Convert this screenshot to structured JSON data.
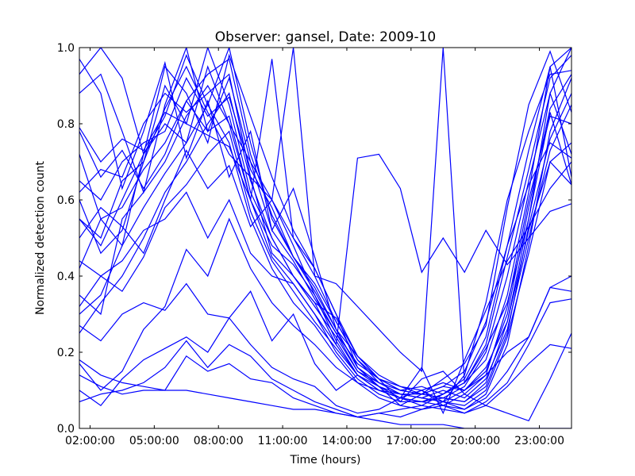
{
  "chart_data": {
    "type": "line",
    "title": "Observer: gansel, Date: 2009-10",
    "xlabel": "Time (hours)",
    "ylabel": "Normalized detection count",
    "xlim": [
      1.5,
      24.5
    ],
    "ylim": [
      0.0,
      1.0
    ],
    "grid": false,
    "line_color": "#0000ff",
    "x_ticks": [
      {
        "value": 2,
        "label": "02:00:00"
      },
      {
        "value": 5,
        "label": "05:00:00"
      },
      {
        "value": 8,
        "label": "08:00:00"
      },
      {
        "value": 11,
        "label": "11:00:00"
      },
      {
        "value": 14,
        "label": "14:00:00"
      },
      {
        "value": 17,
        "label": "17:00:00"
      },
      {
        "value": 20,
        "label": "20:00:00"
      },
      {
        "value": 23,
        "label": "23:00:00"
      }
    ],
    "y_ticks": [
      {
        "value": 0.0,
        "label": "0.0"
      },
      {
        "value": 0.2,
        "label": "0.2"
      },
      {
        "value": 0.4,
        "label": "0.4"
      },
      {
        "value": 0.6,
        "label": "0.6"
      },
      {
        "value": 0.8,
        "label": "0.8"
      },
      {
        "value": 1.0,
        "label": "1.0"
      }
    ],
    "x": [
      1.5,
      2.5,
      3.5,
      4.5,
      5.5,
      6.5,
      7.5,
      8.5,
      9.5,
      10.5,
      11.5,
      12.5,
      13.5,
      14.5,
      15.5,
      16.5,
      17.5,
      18.5,
      19.5,
      20.5,
      21.5,
      22.5,
      23.5,
      24.5
    ],
    "series": [
      {
        "values": [
          0.93,
          1.0,
          0.92,
          0.72,
          0.82,
          0.98,
          0.85,
          1.0,
          0.75,
          0.55,
          0.45,
          0.38,
          0.28,
          0.18,
          0.13,
          0.1,
          0.09,
          0.08,
          0.07,
          0.12,
          0.28,
          0.55,
          0.88,
          1.0
        ]
      },
      {
        "values": [
          0.88,
          0.93,
          0.78,
          0.62,
          0.85,
          1.0,
          0.78,
          0.92,
          0.7,
          0.6,
          0.48,
          0.35,
          0.25,
          0.15,
          0.11,
          0.08,
          0.1,
          0.07,
          0.05,
          0.09,
          0.22,
          0.48,
          0.78,
          0.92
        ]
      },
      {
        "values": [
          0.55,
          0.5,
          0.65,
          0.7,
          0.9,
          0.8,
          1.0,
          0.85,
          0.62,
          0.5,
          0.4,
          0.33,
          0.22,
          0.14,
          0.1,
          0.08,
          0.06,
          0.09,
          0.12,
          0.18,
          0.35,
          0.62,
          0.95,
          1.0
        ]
      },
      {
        "values": [
          0.72,
          0.55,
          0.48,
          0.72,
          0.95,
          0.88,
          0.75,
          0.98,
          0.82,
          0.66,
          0.52,
          0.42,
          0.3,
          0.19,
          0.14,
          0.11,
          0.1,
          0.12,
          0.1,
          0.15,
          0.3,
          0.58,
          0.84,
          0.93
        ]
      },
      {
        "values": [
          0.65,
          0.6,
          0.7,
          0.75,
          0.78,
          0.92,
          0.82,
          0.87,
          0.68,
          0.58,
          0.45,
          0.36,
          0.26,
          0.16,
          0.12,
          0.09,
          0.08,
          0.1,
          0.08,
          0.13,
          0.26,
          0.5,
          0.73,
          0.85
        ]
      },
      {
        "values": [
          0.35,
          0.3,
          0.55,
          0.62,
          0.7,
          0.82,
          0.9,
          0.8,
          0.6,
          0.45,
          0.38,
          0.3,
          0.2,
          0.13,
          0.09,
          0.07,
          0.07,
          0.06,
          0.09,
          0.14,
          0.32,
          0.6,
          0.82,
          0.8
        ]
      },
      {
        "values": [
          0.3,
          0.35,
          0.48,
          0.58,
          0.67,
          0.75,
          0.85,
          0.75,
          0.55,
          0.42,
          0.33,
          0.27,
          0.19,
          0.12,
          0.1,
          0.09,
          0.08,
          0.07,
          0.1,
          0.16,
          0.28,
          0.52,
          0.7,
          0.75
        ]
      },
      {
        "values": [
          0.25,
          0.33,
          0.4,
          0.5,
          0.62,
          0.7,
          0.8,
          0.88,
          0.65,
          0.5,
          0.4,
          0.32,
          0.24,
          0.15,
          0.12,
          0.1,
          0.09,
          0.08,
          0.11,
          0.2,
          0.4,
          0.65,
          0.88,
          0.72
        ]
      },
      {
        "values": [
          0.55,
          0.48,
          0.6,
          0.72,
          0.8,
          0.75,
          0.95,
          0.8,
          0.7,
          0.52,
          0.44,
          0.34,
          0.25,
          0.17,
          0.13,
          0.1,
          0.11,
          0.09,
          0.12,
          0.22,
          0.45,
          0.68,
          0.92,
          0.98
        ]
      },
      {
        "values": [
          0.62,
          0.68,
          0.66,
          0.8,
          0.88,
          0.83,
          0.88,
          0.93,
          0.66,
          0.6,
          0.5,
          0.4,
          0.28,
          0.18,
          0.12,
          0.09,
          0.08,
          0.07,
          0.06,
          0.1,
          0.24,
          0.46,
          0.7,
          0.64
        ]
      },
      {
        "values": [
          0.42,
          0.55,
          0.58,
          0.68,
          0.75,
          0.86,
          0.93,
          0.97,
          0.72,
          0.56,
          0.45,
          0.37,
          0.26,
          0.16,
          0.11,
          0.08,
          0.07,
          0.08,
          0.07,
          0.11,
          0.25,
          0.53,
          0.76,
          0.88
        ]
      },
      {
        "values": [
          0.78,
          0.66,
          0.73,
          0.63,
          0.72,
          0.86,
          0.78,
          0.82,
          0.6,
          0.48,
          0.43,
          0.35,
          0.23,
          0.14,
          0.1,
          0.08,
          0.07,
          0.09,
          0.13,
          0.24,
          0.48,
          0.73,
          0.95,
          0.66
        ]
      },
      {
        "values": [
          0.32,
          0.4,
          0.36,
          0.45,
          0.58,
          0.64,
          0.72,
          0.78,
          0.57,
          0.44,
          0.36,
          0.28,
          0.21,
          0.14,
          0.11,
          0.09,
          0.09,
          0.11,
          0.15,
          0.28,
          0.48,
          0.64,
          0.75,
          0.71
        ]
      },
      {
        "values": [
          0.17,
          0.1,
          0.15,
          0.26,
          0.32,
          0.47,
          0.4,
          0.55,
          0.42,
          0.33,
          0.27,
          0.22,
          0.16,
          0.12,
          0.08,
          0.06,
          0.09,
          0.11,
          0.1,
          0.14,
          0.2,
          0.24,
          0.37,
          0.4
        ]
      },
      {
        "values": [
          0.1,
          0.06,
          0.13,
          0.18,
          0.21,
          0.24,
          0.2,
          0.29,
          0.22,
          0.16,
          0.13,
          0.11,
          0.06,
          0.04,
          0.05,
          0.08,
          0.1,
          0.06,
          0.05,
          0.08,
          0.15,
          0.24,
          0.37,
          0.36
        ]
      },
      {
        "values": [
          0.07,
          0.09,
          0.1,
          0.12,
          0.16,
          0.23,
          0.16,
          0.22,
          0.19,
          0.13,
          0.1,
          0.07,
          0.05,
          0.03,
          0.04,
          0.05,
          0.06,
          0.05,
          0.04,
          0.06,
          0.11,
          0.17,
          0.22,
          0.21
        ]
      },
      {
        "values": [
          0.14,
          0.11,
          0.09,
          0.1,
          0.1,
          0.19,
          0.15,
          0.17,
          0.13,
          0.12,
          0.08,
          0.06,
          0.04,
          0.03,
          0.04,
          0.03,
          0.05,
          0.06,
          0.04,
          0.07,
          0.12,
          0.22,
          0.33,
          0.34
        ]
      },
      {
        "values": [
          0.44,
          0.4,
          0.44,
          0.52,
          0.55,
          0.62,
          0.5,
          0.6,
          0.46,
          0.4,
          0.38,
          0.3,
          0.22,
          0.71,
          0.72,
          0.63,
          0.41,
          0.5,
          0.41,
          0.52,
          0.43,
          0.5,
          0.57,
          0.59
        ]
      },
      {
        "values": [
          0.27,
          0.23,
          0.3,
          0.33,
          0.31,
          0.38,
          0.3,
          0.29,
          0.36,
          0.23,
          0.3,
          0.17,
          0.1,
          0.14,
          0.1,
          0.08,
          0.16,
          0.04,
          0.18,
          0.31,
          0.44,
          0.53,
          0.63,
          0.7
        ]
      },
      {
        "values": [
          0.5,
          0.58,
          0.53,
          0.46,
          0.6,
          0.73,
          0.63,
          0.69,
          0.53,
          0.6,
          1.0,
          0.4,
          0.38,
          0.32,
          0.26,
          0.2,
          0.15,
          1.0,
          0.12,
          0.21,
          0.33,
          0.55,
          0.83,
          0.64
        ]
      },
      {
        "values": [
          0.79,
          0.7,
          0.76,
          0.73,
          0.83,
          0.8,
          0.77,
          0.74,
          0.6,
          0.97,
          0.5,
          0.42,
          0.3,
          0.16,
          0.11,
          0.06,
          0.05,
          0.07,
          0.14,
          0.33,
          0.6,
          0.78,
          0.93,
          0.94
        ]
      },
      {
        "values": [
          0.18,
          0.14,
          0.12,
          0.11,
          0.1,
          0.1,
          0.09,
          0.08,
          0.07,
          0.06,
          0.05,
          0.05,
          0.04,
          0.03,
          0.02,
          0.01,
          0.01,
          0.01,
          0.0,
          0.0,
          0.0,
          0.0,
          0.0,
          0.0
        ]
      },
      {
        "values": [
          0.6,
          0.46,
          0.52,
          0.7,
          0.84,
          0.95,
          0.83,
          0.72,
          0.66,
          0.46,
          0.4,
          0.33,
          0.29,
          0.19,
          0.13,
          0.07,
          0.13,
          0.15,
          0.09,
          0.06,
          0.04,
          0.02,
          0.13,
          0.25
        ]
      },
      {
        "values": [
          0.97,
          0.88,
          0.63,
          0.78,
          0.96,
          0.71,
          0.86,
          0.66,
          0.78,
          0.52,
          0.63,
          0.45,
          0.26,
          0.19,
          0.13,
          0.11,
          0.09,
          0.13,
          0.17,
          0.27,
          0.58,
          0.85,
          0.99,
          0.83
        ]
      }
    ]
  }
}
